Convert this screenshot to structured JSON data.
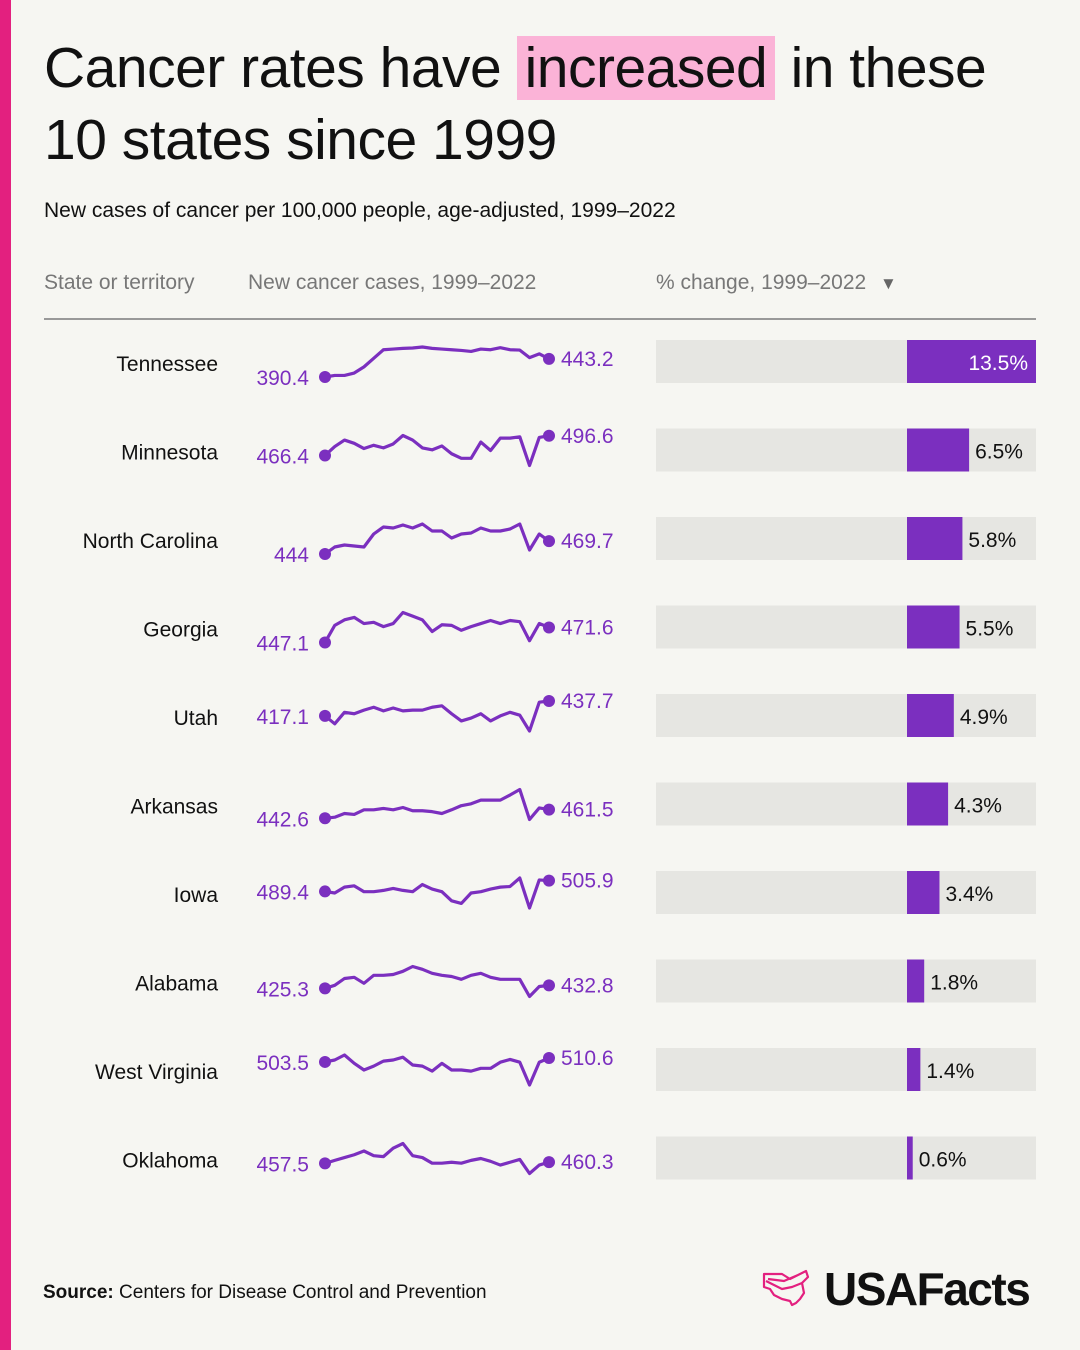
{
  "title": {
    "before": "Cancer rates have",
    "highlight": "increased",
    "after": "in these 10 states since 1999"
  },
  "subtitle": "New cases of cancer per 100,000 people, age-adjusted, 1999–2022",
  "columns": {
    "state": "State or territory",
    "cases": "New cancer cases, 1999–2022",
    "change": "% change, 1999–2022",
    "sort_icon": "triangle-down"
  },
  "source": {
    "label": "Source:",
    "text": "Centers for Disease Control and Prevention"
  },
  "logo": "USAFacts",
  "colors": {
    "accent": "#7b2fbf",
    "highlight": "#fbb3d7",
    "stripe": "#e3207f",
    "bar_bg": "#e6e6e2"
  },
  "chart_data": {
    "type": "table",
    "x_years": [
      1999,
      2022
    ],
    "rows": [
      {
        "state": "Tennessee",
        "start": "390.4",
        "end": "443.2",
        "change": 13.5,
        "change_label": "13.5%",
        "series": [
          390.4,
          395,
          395,
          402,
          420,
          445,
          470,
          472,
          474,
          475,
          478,
          474,
          472,
          470,
          468,
          465,
          472,
          470,
          476,
          470,
          469,
          447,
          458,
          443.2
        ]
      },
      {
        "state": "Minnesota",
        "start": "466.4",
        "end": "496.6",
        "change": 6.5,
        "change_label": "6.5%",
        "series": [
          466.4,
          480,
          490,
          485,
          477,
          482,
          478,
          484,
          497,
          490,
          478,
          475,
          481,
          469,
          462,
          462,
          487,
          474,
          493,
          493,
          495,
          451,
          494,
          496.6
        ]
      },
      {
        "state": "North Carolina",
        "start": "444",
        "end": "469.7",
        "change": 5.8,
        "change_label": "5.8%",
        "series": [
          444,
          458,
          462,
          460,
          458,
          484,
          498,
          496,
          502,
          496,
          504,
          490,
          490,
          476,
          484,
          486,
          496,
          490,
          490,
          494,
          504,
          452,
          484,
          469.7
        ]
      },
      {
        "state": "Georgia",
        "start": "447.1",
        "end": "471.6",
        "change": 5.5,
        "change_label": "5.5%",
        "series": [
          447.1,
          475,
          484,
          488,
          478,
          480,
          473,
          478,
          496,
          490,
          484,
          465,
          476,
          475,
          467,
          473,
          478,
          483,
          478,
          483,
          481,
          450,
          478,
          471.6
        ]
      },
      {
        "state": "Utah",
        "start": "417.1",
        "end": "437.7",
        "change": 4.9,
        "change_label": "4.9%",
        "series": [
          417.1,
          406,
          422,
          420,
          425,
          429,
          424,
          428,
          424,
          425,
          425,
          429,
          431,
          420,
          410,
          414,
          420,
          410,
          417,
          422,
          418,
          396,
          436,
          437.7
        ]
      },
      {
        "state": "Arkansas",
        "start": "442.6",
        "end": "461.5",
        "change": 4.3,
        "change_label": "4.3%",
        "series": [
          442.6,
          445,
          453,
          451,
          461,
          461,
          464,
          461,
          466,
          459,
          459,
          457,
          453,
          461,
          470,
          474,
          482,
          482,
          482,
          493,
          505,
          440,
          465,
          461.5
        ]
      },
      {
        "state": "Iowa",
        "start": "489.4",
        "end": "505.9",
        "change": 3.4,
        "change_label": "3.4%",
        "series": [
          489.4,
          487,
          496,
          498,
          489,
          489,
          491,
          494,
          491,
          489,
          500,
          493,
          489,
          475,
          471,
          487,
          489,
          493,
          496,
          497,
          510,
          464,
          507,
          505.9
        ]
      },
      {
        "state": "Alabama",
        "start": "425.3",
        "end": "432.8",
        "change": 1.8,
        "change_label": "1.8%",
        "series": [
          425.3,
          433,
          450,
          453,
          438,
          458,
          458,
          460,
          468,
          480,
          473,
          463,
          458,
          455,
          448,
          458,
          463,
          453,
          448,
          448,
          448,
          405,
          430,
          432.8
        ]
      },
      {
        "state": "West Virginia",
        "start": "503.5",
        "end": "510.6",
        "change": 1.4,
        "change_label": "1.4%",
        "series": [
          503.5,
          507,
          516,
          501,
          489,
          496,
          505,
          507,
          512,
          498,
          496,
          487,
          501,
          489,
          489,
          487,
          492,
          492,
          503,
          508,
          503,
          462,
          503,
          510.6
        ]
      },
      {
        "state": "Oklahoma",
        "start": "457.5",
        "end": "460.3",
        "change": 0.6,
        "change_label": "0.6%",
        "series": [
          457.5,
          464,
          470,
          476,
          484,
          474,
          472,
          490,
          500,
          474,
          470,
          458,
          458,
          460,
          458,
          464,
          468,
          462,
          454,
          460,
          466,
          436,
          454,
          460.3
        ]
      }
    ]
  }
}
